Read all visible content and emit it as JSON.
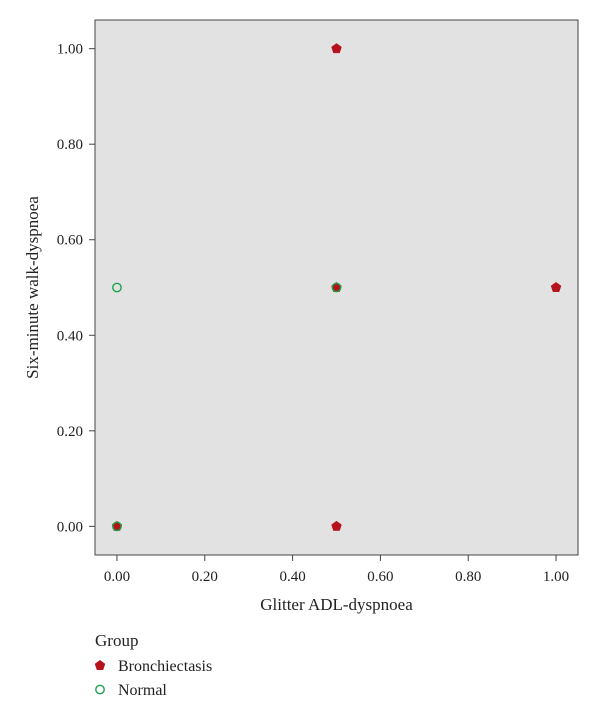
{
  "chart_data": {
    "type": "scatter",
    "xlabel": "Glitter ADL-dyspnoea",
    "ylabel": "Six-minute walk-dyspnoea",
    "xlim": [
      -0.05,
      1.05
    ],
    "ylim": [
      -0.06,
      1.06
    ],
    "x_ticks": [
      "0.00",
      "0.20",
      "0.40",
      "0.60",
      "0.80",
      "1.00"
    ],
    "y_ticks": [
      "0.00",
      "0.20",
      "0.40",
      "0.60",
      "0.80",
      "1.00"
    ],
    "grid": false,
    "plot_background": "#e2e2e2",
    "legend": {
      "title": "Group",
      "placement": "bottom-left"
    },
    "series": [
      {
        "name": "Bronchiectasis",
        "marker": "pentagon-filled",
        "color": "#b5121b",
        "points": [
          {
            "x": 0.5,
            "y": 1.0
          },
          {
            "x": 0.5,
            "y": 0.5
          },
          {
            "x": 1.0,
            "y": 0.5
          },
          {
            "x": 0.0,
            "y": 0.0
          },
          {
            "x": 0.5,
            "y": 0.0
          }
        ]
      },
      {
        "name": "Normal",
        "marker": "circle-open",
        "color": "#1aa34a",
        "points": [
          {
            "x": 0.0,
            "y": 0.5
          },
          {
            "x": 0.5,
            "y": 0.5
          },
          {
            "x": 0.0,
            "y": 0.0
          }
        ]
      }
    ]
  }
}
